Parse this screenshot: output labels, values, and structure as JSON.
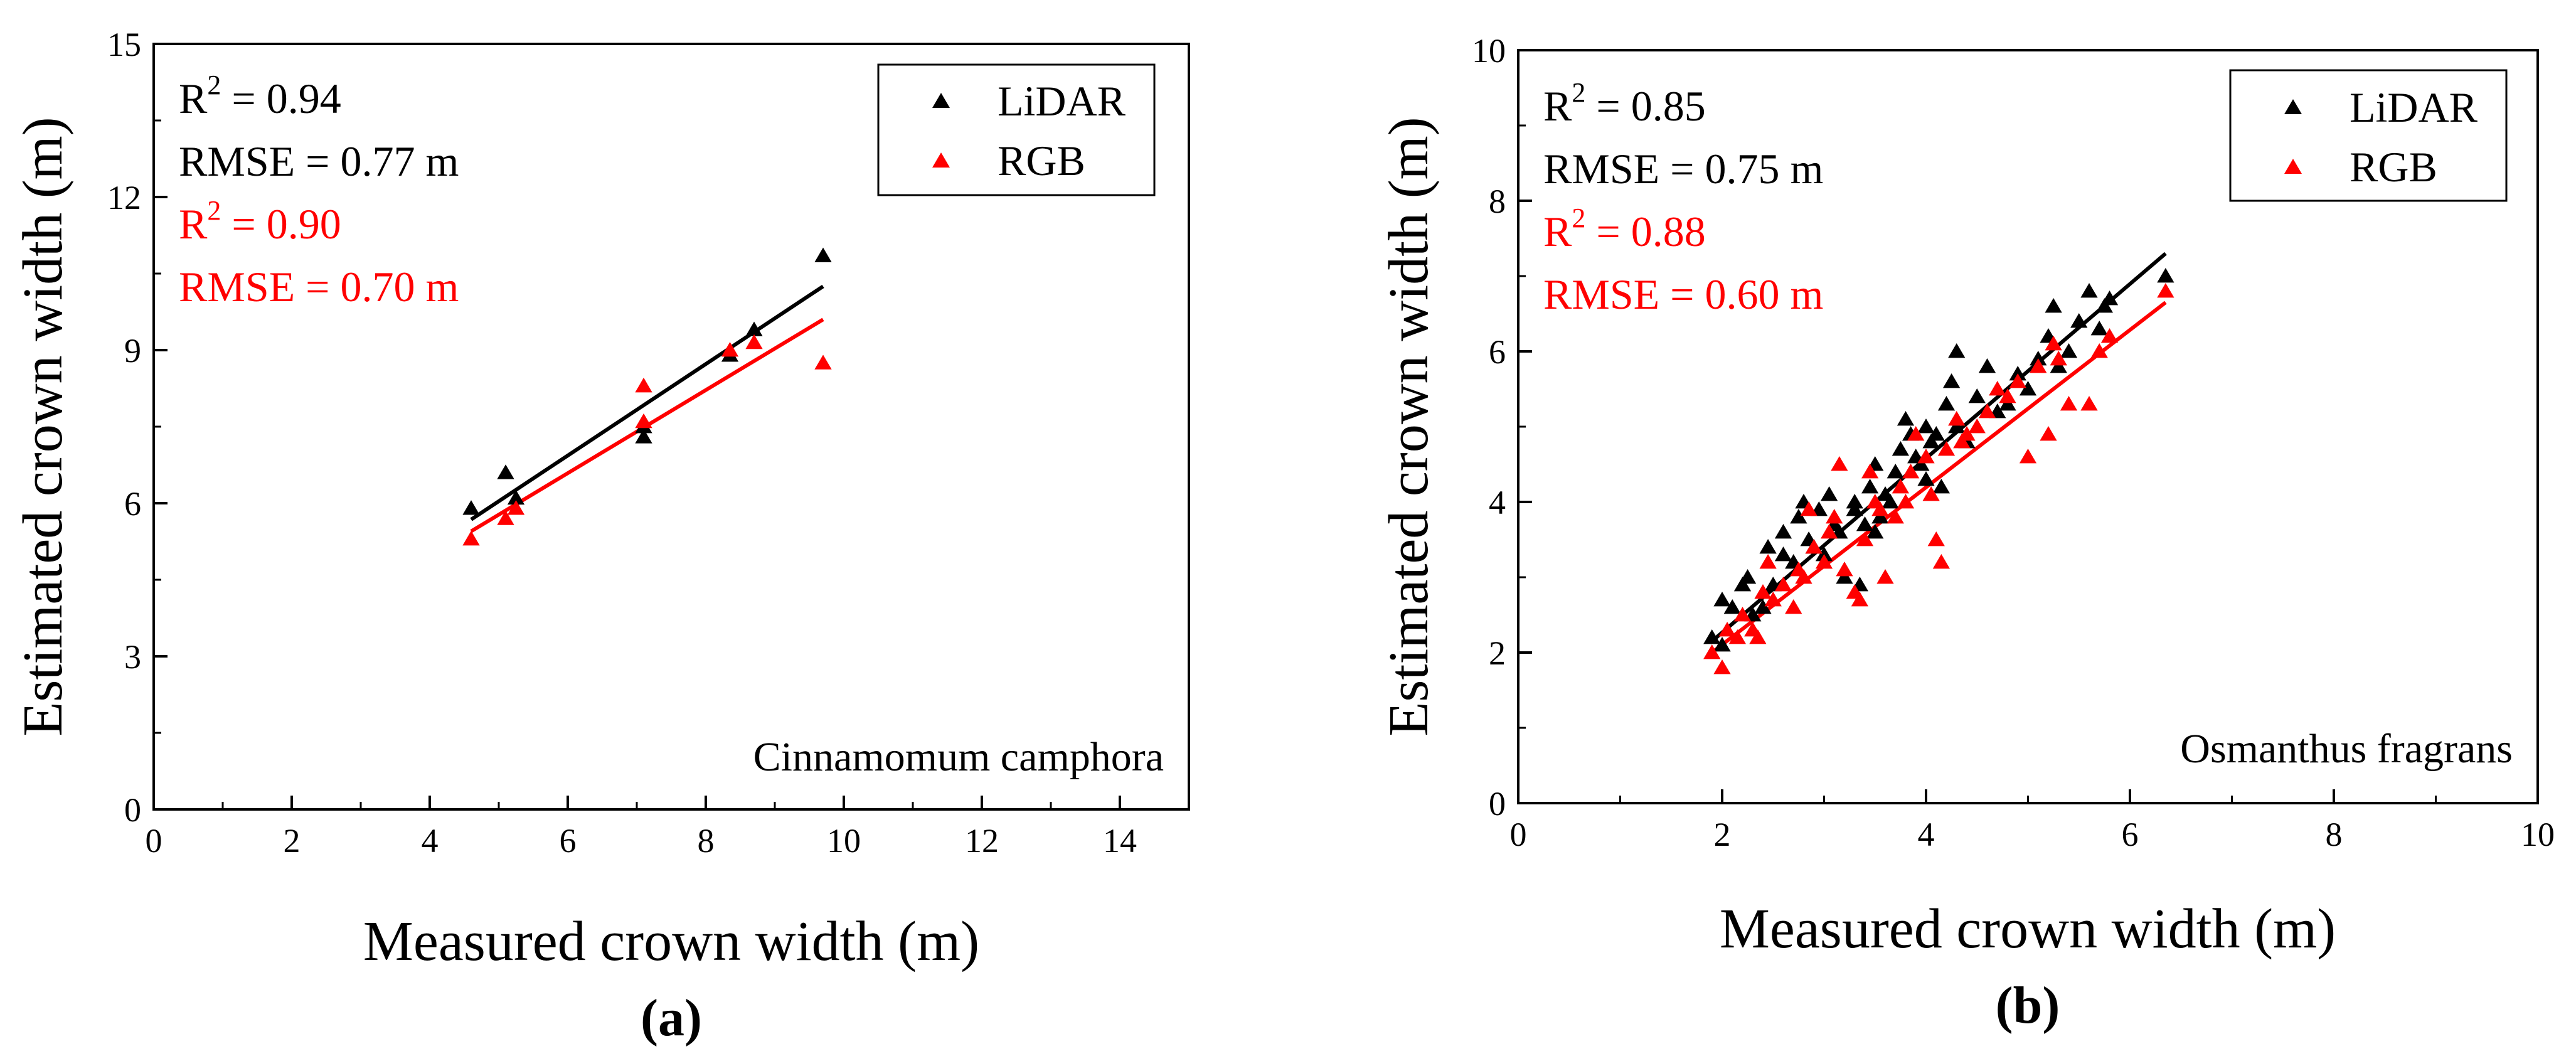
{
  "colors": {
    "lidar": "#000000",
    "rgb": "#ff0000",
    "axis": "#000000",
    "background": "#ffffff"
  },
  "chart_data": [
    {
      "id": "a",
      "type": "scatter",
      "panel_label": "(a)",
      "species": "Cinnamomum camphora",
      "xlabel": "Measured crown width (m)",
      "ylabel": "Estimated crown width (m)",
      "xlim": [
        0,
        15
      ],
      "ylim": [
        0,
        15
      ],
      "xticks": [
        0,
        2,
        4,
        6,
        8,
        10,
        12,
        14
      ],
      "yticks": [
        0,
        3,
        6,
        9,
        12,
        15
      ],
      "xtick_labels": [
        "0",
        "2",
        "4",
        "6",
        "8",
        "10",
        "12",
        "14"
      ],
      "ytick_labels": [
        "0",
        "3",
        "6",
        "9",
        "12",
        "15"
      ],
      "grid": false,
      "legend_position": "top-right",
      "legend": [
        {
          "name": "LiDAR",
          "color": "#000000"
        },
        {
          "name": "RGB",
          "color": "#ff0000"
        }
      ],
      "stats": [
        {
          "r2_label": "R",
          "r2_value": " = 0.94",
          "rmse": "RMSE = 0.77 m",
          "color": "#000000"
        },
        {
          "r2_label": "R",
          "r2_value": " = 0.90",
          "rmse": "RMSE = 0.70 m",
          "color": "#ff0000"
        }
      ],
      "series": [
        {
          "name": "LiDAR",
          "color": "#000000",
          "points": [
            [
              4.6,
              5.9
            ],
            [
              5.1,
              6.6
            ],
            [
              5.25,
              6.1
            ],
            [
              7.1,
              7.5
            ],
            [
              7.1,
              7.3
            ],
            [
              8.35,
              8.9
            ],
            [
              8.7,
              9.4
            ],
            [
              9.7,
              10.85
            ]
          ],
          "fit": [
            [
              4.6,
              5.68
            ],
            [
              9.7,
              10.25
            ]
          ]
        },
        {
          "name": "RGB",
          "color": "#ff0000",
          "points": [
            [
              4.6,
              5.3
            ],
            [
              5.1,
              5.7
            ],
            [
              5.25,
              5.9
            ],
            [
              7.1,
              8.3
            ],
            [
              7.1,
              7.6
            ],
            [
              8.35,
              9.0
            ],
            [
              8.7,
              9.15
            ],
            [
              9.7,
              8.75
            ]
          ],
          "fit": [
            [
              4.6,
              5.45
            ],
            [
              9.7,
              9.6
            ]
          ]
        }
      ]
    },
    {
      "id": "b",
      "type": "scatter",
      "panel_label": "(b)",
      "species": "Osmanthus fragrans",
      "xlabel": "Measured crown width (m)",
      "ylabel": "Estimated crown width (m)",
      "xlim": [
        0,
        10
      ],
      "ylim": [
        0,
        10
      ],
      "xticks": [
        0,
        2,
        4,
        6,
        8,
        10
      ],
      "yticks": [
        0,
        2,
        4,
        6,
        8,
        10
      ],
      "xtick_labels": [
        "0",
        "2",
        "4",
        "6",
        "8",
        "10"
      ],
      "ytick_labels": [
        "0",
        "2",
        "4",
        "6",
        "8",
        "10"
      ],
      "grid": false,
      "legend_position": "top-right",
      "legend": [
        {
          "name": "LiDAR",
          "color": "#000000"
        },
        {
          "name": "RGB",
          "color": "#ff0000"
        }
      ],
      "stats": [
        {
          "r2_label": "R",
          "r2_value": " = 0.85",
          "rmse": "RMSE = 0.75 m",
          "color": "#000000"
        },
        {
          "r2_label": "R",
          "r2_value": " = 0.88",
          "rmse": "RMSE = 0.60 m",
          "color": "#ff0000"
        }
      ],
      "series": [
        {
          "name": "LiDAR",
          "color": "#000000",
          "points": [
            [
              1.9,
              2.2
            ],
            [
              2.0,
              2.1
            ],
            [
              2.0,
              2.7
            ],
            [
              2.1,
              2.6
            ],
            [
              2.2,
              2.9
            ],
            [
              2.25,
              3.0
            ],
            [
              2.3,
              2.5
            ],
            [
              2.4,
              2.6
            ],
            [
              2.45,
              3.4
            ],
            [
              2.5,
              2.9
            ],
            [
              2.6,
              3.3
            ],
            [
              2.6,
              3.6
            ],
            [
              2.7,
              3.2
            ],
            [
              2.75,
              3.8
            ],
            [
              2.8,
              4.0
            ],
            [
              2.85,
              3.5
            ],
            [
              2.9,
              3.4
            ],
            [
              2.95,
              3.9
            ],
            [
              3.0,
              3.3
            ],
            [
              3.05,
              4.1
            ],
            [
              3.1,
              3.7
            ],
            [
              3.15,
              3.6
            ],
            [
              3.2,
              3.0
            ],
            [
              3.3,
              3.9
            ],
            [
              3.3,
              4.0
            ],
            [
              3.35,
              2.9
            ],
            [
              3.4,
              3.7
            ],
            [
              3.45,
              4.2
            ],
            [
              3.5,
              4.5
            ],
            [
              3.5,
              3.6
            ],
            [
              3.55,
              3.8
            ],
            [
              3.6,
              4.1
            ],
            [
              3.65,
              4.0
            ],
            [
              3.7,
              4.4
            ],
            [
              3.75,
              4.7
            ],
            [
              3.8,
              5.1
            ],
            [
              3.85,
              4.9
            ],
            [
              3.9,
              4.6
            ],
            [
              3.95,
              4.5
            ],
            [
              4.0,
              5.0
            ],
            [
              4.0,
              4.3
            ],
            [
              4.05,
              4.8
            ],
            [
              4.1,
              4.9
            ],
            [
              4.15,
              4.2
            ],
            [
              4.2,
              5.3
            ],
            [
              4.25,
              5.6
            ],
            [
              4.3,
              6.0
            ],
            [
              4.3,
              5.0
            ],
            [
              4.4,
              4.8
            ],
            [
              4.5,
              5.4
            ],
            [
              4.6,
              5.8
            ],
            [
              4.7,
              5.2
            ],
            [
              4.8,
              5.3
            ],
            [
              4.9,
              5.7
            ],
            [
              5.0,
              5.5
            ],
            [
              5.1,
              5.9
            ],
            [
              5.2,
              6.2
            ],
            [
              5.25,
              6.6
            ],
            [
              5.3,
              5.8
            ],
            [
              5.4,
              6.0
            ],
            [
              5.5,
              6.4
            ],
            [
              5.6,
              6.8
            ],
            [
              5.7,
              6.3
            ],
            [
              5.75,
              6.6
            ],
            [
              5.8,
              6.7
            ],
            [
              6.35,
              7.0
            ]
          ],
          "fit": [
            [
              1.9,
              2.15
            ],
            [
              6.35,
              7.3
            ]
          ]
        },
        {
          "name": "RGB",
          "color": "#ff0000",
          "points": [
            [
              1.9,
              2.0
            ],
            [
              2.0,
              1.8
            ],
            [
              2.05,
              2.3
            ],
            [
              2.15,
              2.2
            ],
            [
              2.2,
              2.5
            ],
            [
              2.3,
              2.3
            ],
            [
              2.35,
              2.2
            ],
            [
              2.4,
              2.8
            ],
            [
              2.45,
              3.2
            ],
            [
              2.5,
              2.7
            ],
            [
              2.6,
              2.9
            ],
            [
              2.7,
              2.6
            ],
            [
              2.75,
              3.1
            ],
            [
              2.8,
              3.0
            ],
            [
              2.85,
              3.9
            ],
            [
              2.9,
              3.4
            ],
            [
              3.0,
              3.2
            ],
            [
              3.05,
              3.6
            ],
            [
              3.1,
              3.8
            ],
            [
              3.15,
              4.5
            ],
            [
              3.2,
              3.1
            ],
            [
              3.3,
              2.8
            ],
            [
              3.35,
              2.7
            ],
            [
              3.4,
              3.5
            ],
            [
              3.45,
              4.4
            ],
            [
              3.5,
              4.0
            ],
            [
              3.55,
              3.9
            ],
            [
              3.6,
              3.0
            ],
            [
              3.7,
              3.8
            ],
            [
              3.75,
              4.2
            ],
            [
              3.8,
              4.0
            ],
            [
              3.85,
              4.4
            ],
            [
              3.9,
              4.9
            ],
            [
              4.0,
              4.6
            ],
            [
              4.05,
              4.1
            ],
            [
              4.1,
              3.5
            ],
            [
              4.15,
              3.2
            ],
            [
              4.2,
              4.7
            ],
            [
              4.3,
              5.1
            ],
            [
              4.35,
              4.8
            ],
            [
              4.4,
              4.9
            ],
            [
              4.5,
              5.0
            ],
            [
              4.6,
              5.2
            ],
            [
              4.7,
              5.5
            ],
            [
              4.8,
              5.4
            ],
            [
              4.9,
              5.6
            ],
            [
              5.0,
              4.6
            ],
            [
              5.1,
              5.8
            ],
            [
              5.2,
              4.9
            ],
            [
              5.25,
              6.1
            ],
            [
              5.3,
              5.9
            ],
            [
              5.4,
              5.3
            ],
            [
              5.6,
              5.3
            ],
            [
              5.7,
              6.0
            ],
            [
              5.8,
              6.2
            ],
            [
              6.35,
              6.8
            ]
          ],
          "fit": [
            [
              1.9,
              2.0
            ],
            [
              6.35,
              6.65
            ]
          ]
        }
      ]
    }
  ]
}
